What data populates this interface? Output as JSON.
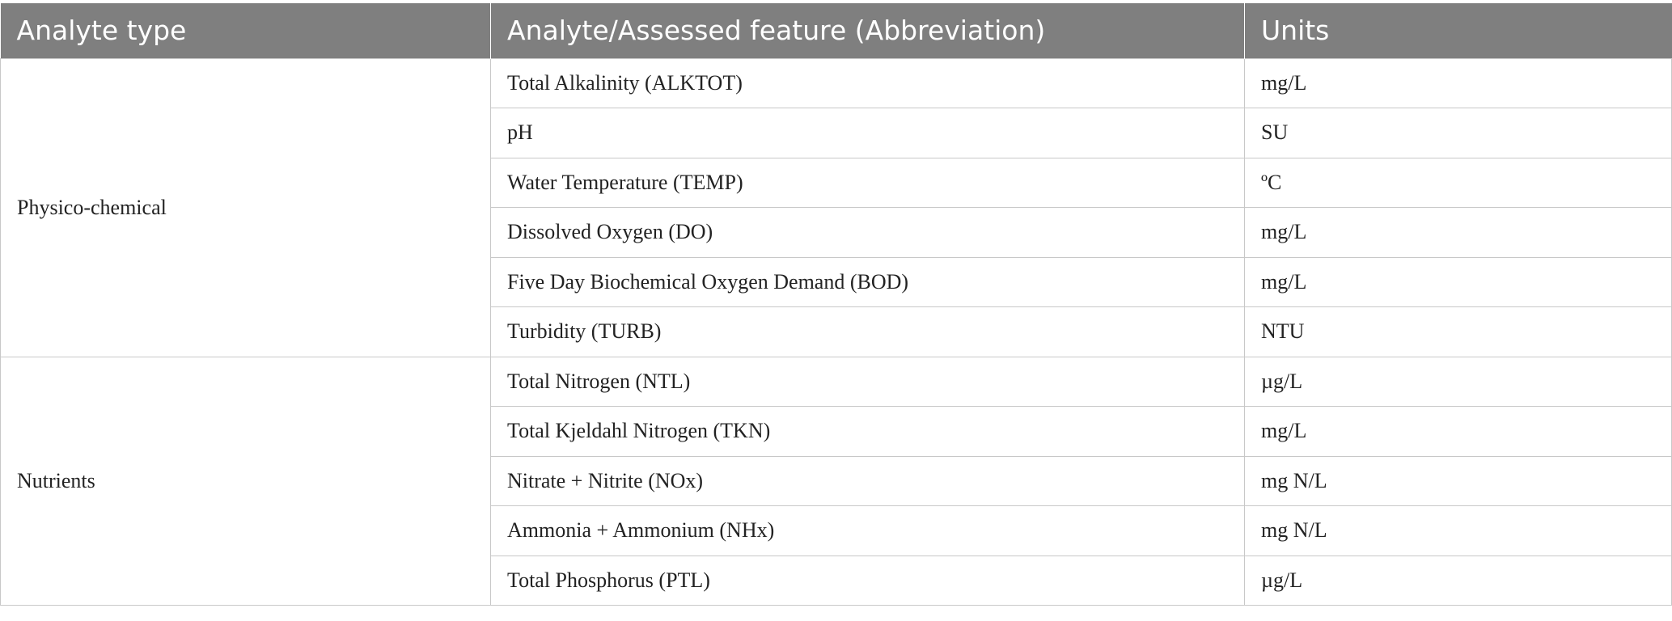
{
  "table": {
    "headers": [
      "Analyte type",
      "Analyte/Assessed feature (Abbreviation)",
      "Units"
    ],
    "groups": [
      {
        "type": "Physico-chemical",
        "rows": [
          {
            "feature": "Total Alkalinity (ALKTOT)",
            "units": "mg/L"
          },
          {
            "feature": "pH",
            "units": "SU"
          },
          {
            "feature": "Water Temperature (TEMP)",
            "units": "ºC"
          },
          {
            "feature": "Dissolved Oxygen (DO)",
            "units": "mg/L"
          },
          {
            "feature": "Five Day Biochemical Oxygen Demand (BOD)",
            "units": "mg/L"
          },
          {
            "feature": "Turbidity (TURB)",
            "units": "NTU"
          }
        ]
      },
      {
        "type": "Nutrients",
        "rows": [
          {
            "feature": "Total Nitrogen (NTL)",
            "units": "µg/L"
          },
          {
            "feature": "Total Kjeldahl Nitrogen (TKN)",
            "units": "mg/L"
          },
          {
            "feature": "Nitrate + Nitrite (NOx)",
            "units": "mg N/L"
          },
          {
            "feature": "Ammonia + Ammonium (NHx)",
            "units": "mg N/L"
          },
          {
            "feature": "Total Phosphorus (PTL)",
            "units": "µg/L"
          }
        ]
      }
    ]
  }
}
